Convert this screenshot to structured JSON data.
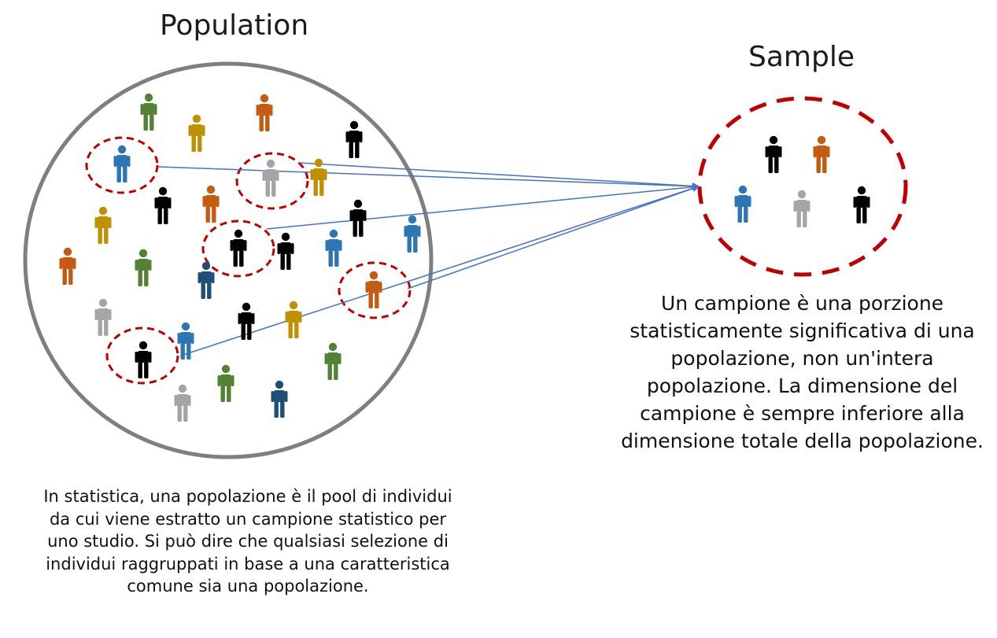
{
  "population": {
    "title": "Population",
    "description": "In statistica, una popolazione è il pool di individui da cui viene estratto un campione statistico per uno studio. Si può dire che qualsiasi selezione di individui raggruppati in base a una caratteristica comune sia una popolazione."
  },
  "sample": {
    "title": "Sample",
    "description": "Un campione è una porzione statisticamente significativa di una popolazione, non un'intera popolazione. La dimensione del campione è sempre inferiore alla dimensione totale della popolazione."
  },
  "colors": {
    "circle_outline": "#7f7f7f",
    "dashed_circle": "#c00000",
    "arrow": "#4472c4",
    "green": "#548235",
    "orange": "#c55a11",
    "yellow": "#bf9000",
    "blue": "#2e75b6",
    "navy": "#1f4e79",
    "gray": "#a5a5a5",
    "black": "#000000"
  }
}
